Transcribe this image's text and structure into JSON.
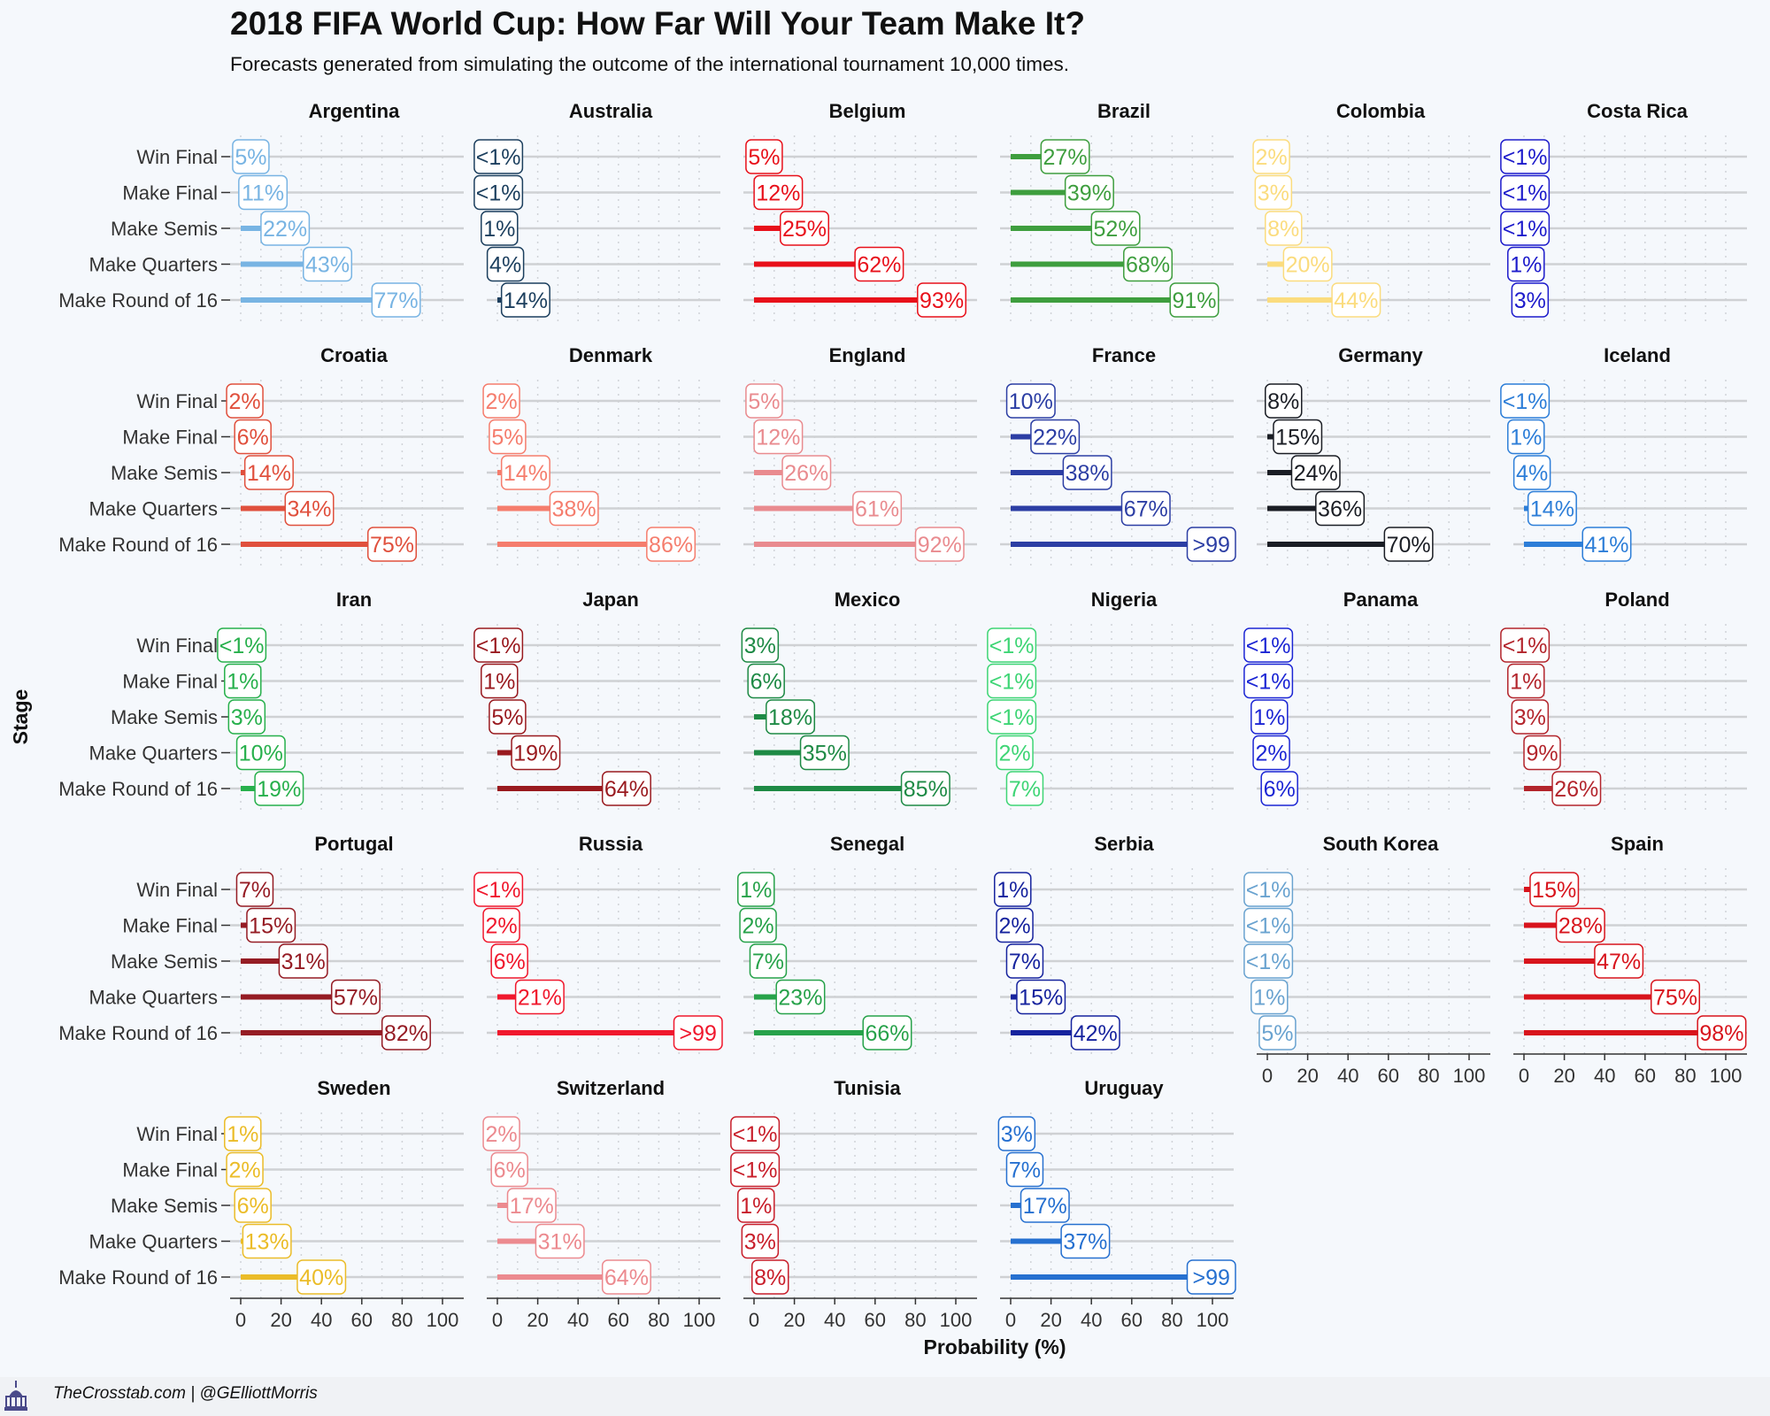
{
  "chart_data": {
    "type": "bar",
    "title": "2018 FIFA World Cup: How Far Will Your Team Make It?",
    "subtitle": "Forecasts generated from simulating the outcome of the international tournament 10,000 times.",
    "xlabel": "Probability (%)",
    "ylabel": "Stage",
    "xlim": [
      0,
      100
    ],
    "x_ticks": [
      "0",
      "20",
      "40",
      "60",
      "80",
      "100"
    ],
    "categories": [
      "Win Final",
      "Make Final",
      "Make Semis",
      "Make Quarters",
      "Make Round of 16"
    ],
    "grid": true,
    "panels": [
      {
        "team": "Argentina",
        "color": "#78b4e3",
        "values": [
          5,
          11,
          22,
          43,
          77
        ],
        "labels": [
          "5%",
          "11%",
          "22%",
          "43%",
          "77%"
        ]
      },
      {
        "team": "Australia",
        "color": "#1c3f5e",
        "values": [
          0.5,
          0.5,
          1,
          4,
          14
        ],
        "labels": [
          "<1%",
          "<1%",
          "1%",
          "4%",
          "14%"
        ]
      },
      {
        "team": "Belgium",
        "color": "#e8101a",
        "values": [
          5,
          12,
          25,
          62,
          93
        ],
        "labels": [
          "5%",
          "12%",
          "25%",
          "62%",
          "93%"
        ]
      },
      {
        "team": "Brazil",
        "color": "#3e9e3e",
        "values": [
          27,
          39,
          52,
          68,
          91
        ],
        "labels": [
          "27%",
          "39%",
          "52%",
          "68%",
          "91%"
        ]
      },
      {
        "team": "Colombia",
        "color": "#fbdc7e",
        "values": [
          2,
          3,
          8,
          20,
          44
        ],
        "labels": [
          "2%",
          "3%",
          "8%",
          "20%",
          "44%"
        ]
      },
      {
        "team": "Costa Rica",
        "color": "#1d1bcb",
        "values": [
          0.5,
          0.5,
          0.5,
          1,
          3
        ],
        "labels": [
          "<1%",
          "<1%",
          "<1%",
          "1%",
          "3%"
        ]
      },
      {
        "team": "Croatia",
        "color": "#e0503d",
        "values": [
          2,
          6,
          14,
          34,
          75
        ],
        "labels": [
          "2%",
          "6%",
          "14%",
          "34%",
          "75%"
        ]
      },
      {
        "team": "Denmark",
        "color": "#f57d6d",
        "values": [
          2,
          5,
          14,
          38,
          86
        ],
        "labels": [
          "2%",
          "5%",
          "14%",
          "38%",
          "86%"
        ]
      },
      {
        "team": "England",
        "color": "#e98b8f",
        "values": [
          5,
          12,
          26,
          61,
          92
        ],
        "labels": [
          "5%",
          "12%",
          "26%",
          "61%",
          "92%"
        ]
      },
      {
        "team": "France",
        "color": "#2c3ea4",
        "values": [
          10,
          22,
          38,
          67,
          99.5
        ],
        "labels": [
          "10%",
          "22%",
          "38%",
          "67%",
          ">99"
        ]
      },
      {
        "team": "Germany",
        "color": "#1a1d24",
        "values": [
          8,
          15,
          24,
          36,
          70
        ],
        "labels": [
          "8%",
          "15%",
          "24%",
          "36%",
          "70%"
        ]
      },
      {
        "team": "Iceland",
        "color": "#2d7ed8",
        "values": [
          0.5,
          1,
          4,
          14,
          41
        ],
        "labels": [
          "<1%",
          "1%",
          "4%",
          "14%",
          "41%"
        ]
      },
      {
        "team": "Iran",
        "color": "#27b04c",
        "values": [
          0.5,
          1,
          3,
          10,
          19
        ],
        "labels": [
          "<1%",
          "1%",
          "3%",
          "10%",
          "19%"
        ]
      },
      {
        "team": "Japan",
        "color": "#991a1f",
        "values": [
          0.5,
          1,
          5,
          19,
          64
        ],
        "labels": [
          "<1%",
          "1%",
          "5%",
          "19%",
          "64%"
        ]
      },
      {
        "team": "Mexico",
        "color": "#1e8a45",
        "values": [
          3,
          6,
          18,
          35,
          85
        ],
        "labels": [
          "3%",
          "6%",
          "18%",
          "35%",
          "85%"
        ]
      },
      {
        "team": "Nigeria",
        "color": "#3ed575",
        "values": [
          0.5,
          0.5,
          0.5,
          2,
          7
        ],
        "labels": [
          "<1%",
          "<1%",
          "<1%",
          "2%",
          "7%"
        ]
      },
      {
        "team": "Panama",
        "color": "#1c26d4",
        "values": [
          0.5,
          0.5,
          1,
          2,
          6
        ],
        "labels": [
          "<1%",
          "<1%",
          "1%",
          "2%",
          "6%"
        ]
      },
      {
        "team": "Poland",
        "color": "#b3252c",
        "values": [
          0.5,
          1,
          3,
          9,
          26
        ],
        "labels": [
          "<1%",
          "1%",
          "3%",
          "9%",
          "26%"
        ]
      },
      {
        "team": "Portugal",
        "color": "#951c24",
        "values": [
          7,
          15,
          31,
          57,
          82
        ],
        "labels": [
          "7%",
          "15%",
          "31%",
          "57%",
          "82%"
        ]
      },
      {
        "team": "Russia",
        "color": "#f0182d",
        "values": [
          0.5,
          2,
          6,
          21,
          99.5
        ],
        "labels": [
          "<1%",
          "2%",
          "6%",
          "21%",
          ">99"
        ]
      },
      {
        "team": "Senegal",
        "color": "#27a24a",
        "values": [
          1,
          2,
          7,
          23,
          66
        ],
        "labels": [
          "1%",
          "2%",
          "7%",
          "23%",
          "66%"
        ]
      },
      {
        "team": "Serbia",
        "color": "#16239e",
        "values": [
          1,
          2,
          7,
          15,
          42
        ],
        "labels": [
          "1%",
          "2%",
          "7%",
          "15%",
          "42%"
        ]
      },
      {
        "team": "South Korea",
        "color": "#6aa3d0",
        "values": [
          0.5,
          0.5,
          0.5,
          1,
          5
        ],
        "labels": [
          "<1%",
          "<1%",
          "<1%",
          "1%",
          "5%"
        ]
      },
      {
        "team": "Spain",
        "color": "#d8141c",
        "values": [
          15,
          28,
          47,
          75,
          98
        ],
        "labels": [
          "15%",
          "28%",
          "47%",
          "75%",
          "98%"
        ]
      },
      {
        "team": "Sweden",
        "color": "#ebbc28",
        "values": [
          1,
          2,
          6,
          13,
          40
        ],
        "labels": [
          "1%",
          "2%",
          "6%",
          "13%",
          "40%"
        ]
      },
      {
        "team": "Switzerland",
        "color": "#ec8a8f",
        "values": [
          2,
          6,
          17,
          31,
          64
        ],
        "labels": [
          "2%",
          "6%",
          "17%",
          "31%",
          "64%"
        ]
      },
      {
        "team": "Tunisia",
        "color": "#c81e2a",
        "values": [
          0.5,
          0.5,
          1,
          3,
          8
        ],
        "labels": [
          "<1%",
          "<1%",
          "1%",
          "3%",
          "8%"
        ]
      },
      {
        "team": "Uruguay",
        "color": "#2670d0",
        "values": [
          3,
          7,
          17,
          37,
          99.5
        ],
        "labels": [
          "3%",
          "7%",
          "17%",
          "37%",
          ">99"
        ]
      }
    ]
  },
  "footer": {
    "credit": "TheCrosstab.com | @GElliottMorris",
    "logo_icon": "capitol-icon"
  }
}
